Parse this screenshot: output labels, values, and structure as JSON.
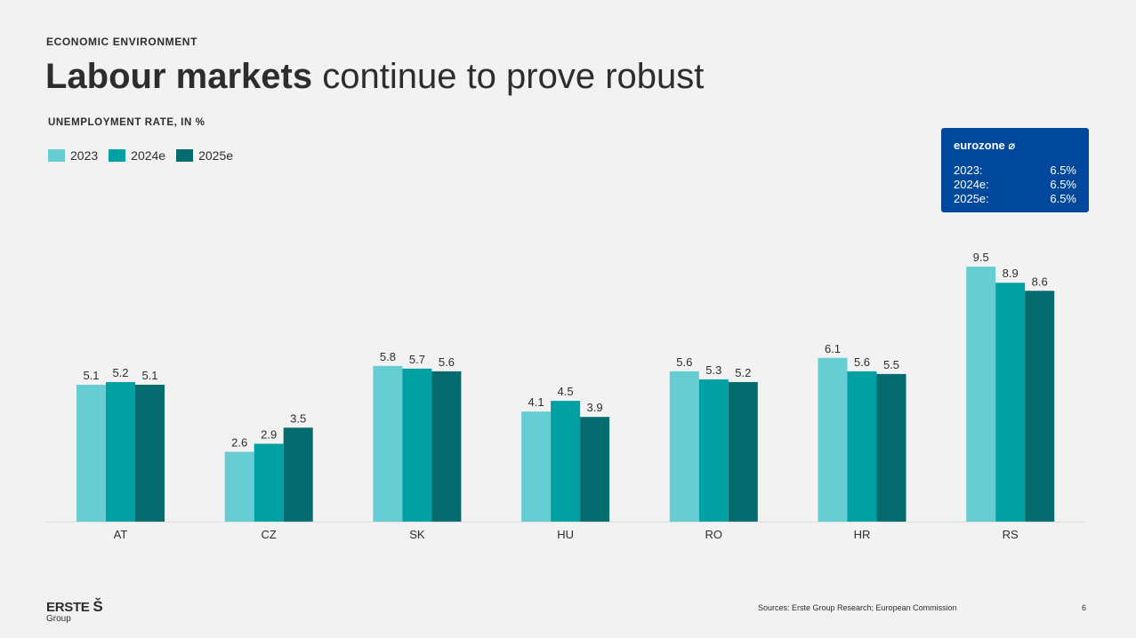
{
  "section": "ECONOMIC ENVIRONMENT",
  "headline": {
    "bold": "Labour markets",
    "rest": " continue to prove robust"
  },
  "chart_data": {
    "type": "bar",
    "title": "UNEMPLOYMENT RATE, IN %",
    "categories": [
      "AT",
      "CZ",
      "SK",
      "HU",
      "RO",
      "HR",
      "RS"
    ],
    "series": [
      {
        "name": "2023",
        "color": "#66cdd2",
        "values": [
          5.1,
          2.6,
          5.8,
          4.1,
          5.6,
          6.1,
          9.5
        ]
      },
      {
        "name": "2024e",
        "color": "#00a0a3",
        "values": [
          5.2,
          2.9,
          5.7,
          4.5,
          5.3,
          5.6,
          8.9
        ]
      },
      {
        "name": "2025e",
        "color": "#046b6e",
        "values": [
          5.1,
          3.5,
          5.6,
          3.9,
          5.2,
          5.5,
          8.6
        ]
      }
    ],
    "legend_position": "top-left",
    "grid": false
  },
  "eurozone": {
    "title": "eurozone ⌀",
    "rows": [
      {
        "label": "2023:",
        "value": "6.5%"
      },
      {
        "label": "2024e:",
        "value": "6.5%"
      },
      {
        "label": "2025e:",
        "value": "6.5%"
      }
    ]
  },
  "footer": {
    "logo_text": "ERSTE",
    "logo_mark": "Š",
    "logo_sub": "Group",
    "sources": "Sources: Erste Group Research; European Commission",
    "page": "6"
  }
}
